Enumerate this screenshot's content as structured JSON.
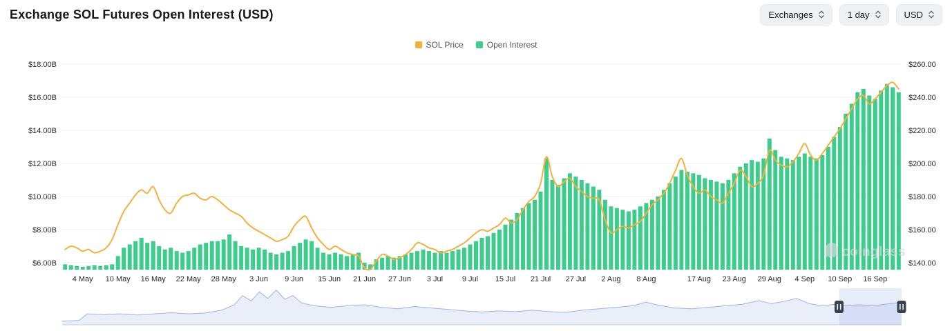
{
  "header": {
    "title": "Exchange SOL Futures Open Interest (USD)",
    "controls": [
      {
        "id": "exchanges",
        "label": "Exchanges"
      },
      {
        "id": "interval",
        "label": "1 day"
      },
      {
        "id": "currency",
        "label": "USD"
      }
    ]
  },
  "legend": [
    {
      "label": "SOL Price",
      "color": "#F3B13C"
    },
    {
      "label": "Open Interest",
      "color": "#3CCD8C"
    }
  ],
  "watermark": "coinglass",
  "colors": {
    "bar_green": "#3CCD8C",
    "line_yellow": "#F3B13C",
    "grid": "#EEEFF1",
    "axis_text": "#26292D",
    "button_bg": "#F0F1F4"
  },
  "chart_data": {
    "type": "bar+line",
    "title": "Exchange SOL Futures Open Interest (USD)",
    "legend_position": "top-center",
    "grid": true,
    "x": [
      "1 May",
      "2 May",
      "3 May",
      "4 May",
      "5 May",
      "6 May",
      "7 May",
      "8 May",
      "9 May",
      "10 May",
      "11 May",
      "12 May",
      "13 May",
      "14 May",
      "15 May",
      "16 May",
      "17 May",
      "18 May",
      "19 May",
      "20 May",
      "21 May",
      "22 May",
      "23 May",
      "24 May",
      "25 May",
      "26 May",
      "27 May",
      "28 May",
      "29 May",
      "30 May",
      "31 May",
      "1 Jun",
      "2 Jun",
      "3 Jun",
      "4 Jun",
      "5 Jun",
      "6 Jun",
      "7 Jun",
      "8 Jun",
      "9 Jun",
      "10 Jun",
      "11 Jun",
      "12 Jun",
      "13 Jun",
      "14 Jun",
      "15 Jun",
      "16 Jun",
      "17 Jun",
      "18 Jun",
      "19 Jun",
      "20 Jun",
      "21 Jun",
      "22 Jun",
      "23 Jun",
      "24 Jun",
      "25 Jun",
      "26 Jun",
      "27 Jun",
      "28 Jun",
      "29 Jun",
      "30 Jun",
      "1 Jul",
      "2 Jul",
      "3 Jul",
      "4 Jul",
      "5 Jul",
      "6 Jul",
      "7 Jul",
      "8 Jul",
      "9 Jul",
      "10 Jul",
      "11 Jul",
      "12 Jul",
      "13 Jul",
      "14 Jul",
      "15 Jul",
      "16 Jul",
      "17 Jul",
      "18 Jul",
      "19 Jul",
      "20 Jul",
      "21 Jul",
      "22 Jul",
      "23 Jul",
      "24 Jul",
      "25 Jul",
      "26 Jul",
      "27 Jul",
      "28 Jul",
      "29 Jul",
      "30 Jul",
      "31 Jul",
      "1 Aug",
      "2 Aug",
      "3 Aug",
      "4 Aug",
      "5 Aug",
      "6 Aug",
      "7 Aug",
      "8 Aug",
      "9 Aug",
      "10 Aug",
      "11 Aug",
      "12 Aug",
      "13 Aug",
      "14 Aug",
      "15 Aug",
      "16 Aug",
      "17 Aug",
      "18 Aug",
      "19 Aug",
      "20 Aug",
      "21 Aug",
      "22 Aug",
      "23 Aug",
      "24 Aug",
      "25 Aug",
      "26 Aug",
      "27 Aug",
      "28 Aug",
      "29 Aug",
      "30 Aug",
      "31 Aug",
      "1 Sep",
      "2 Sep",
      "3 Sep",
      "4 Sep",
      "5 Sep",
      "6 Sep",
      "7 Sep",
      "8 Sep",
      "9 Sep",
      "10 Sep",
      "11 Sep",
      "12 Sep",
      "13 Sep",
      "14 Sep",
      "15 Sep",
      "16 Sep",
      "17 Sep",
      "18 Sep",
      "19 Sep",
      "20 Sep"
    ],
    "series": [
      {
        "name": "Open Interest",
        "type": "bar",
        "axis": "left",
        "unit": "USD billions",
        "color": "#3CCD8C",
        "values": [
          5.9,
          5.85,
          5.8,
          5.75,
          5.8,
          5.85,
          5.8,
          5.85,
          5.9,
          6.4,
          6.9,
          7.1,
          7.3,
          7.5,
          7.2,
          7.3,
          7.0,
          6.8,
          6.9,
          6.7,
          6.6,
          6.7,
          6.9,
          7.1,
          7.2,
          7.3,
          7.3,
          7.4,
          7.7,
          7.3,
          7.0,
          6.9,
          6.8,
          6.9,
          6.8,
          6.6,
          6.5,
          6.6,
          6.7,
          7.0,
          7.2,
          7.4,
          7.3,
          6.9,
          6.6,
          6.5,
          6.6,
          6.5,
          6.4,
          6.5,
          6.6,
          6.0,
          5.9,
          6.2,
          6.3,
          6.4,
          6.3,
          6.4,
          6.5,
          6.6,
          6.7,
          6.8,
          6.7,
          6.6,
          6.7,
          6.6,
          6.7,
          6.8,
          6.9,
          7.1,
          7.3,
          7.5,
          7.6,
          7.8,
          8.0,
          8.3,
          8.6,
          9.0,
          9.3,
          9.6,
          9.8,
          10.3,
          12.3,
          11.0,
          10.7,
          11.1,
          11.4,
          11.2,
          11.0,
          10.8,
          10.6,
          10.4,
          9.8,
          9.4,
          9.3,
          9.2,
          9.1,
          9.2,
          9.4,
          9.6,
          9.8,
          10.0,
          10.4,
          10.8,
          11.2,
          11.6,
          11.5,
          11.4,
          11.3,
          11.1,
          11.0,
          10.9,
          10.8,
          11.0,
          11.4,
          11.8,
          12.0,
          12.2,
          12.1,
          12.3,
          13.5,
          12.8,
          12.4,
          12.3,
          12.2,
          12.4,
          12.6,
          12.4,
          12.3,
          12.5,
          13.0,
          13.6,
          14.2,
          15.0,
          15.6,
          16.3,
          16.5,
          16.1,
          15.9,
          16.4,
          16.8,
          16.6,
          16.3
        ]
      },
      {
        "name": "SOL Price",
        "type": "line",
        "axis": "right",
        "unit": "USD",
        "color": "#F3B13C",
        "values": [
          148,
          150,
          149,
          147,
          148,
          146,
          147,
          149,
          154,
          163,
          171,
          176,
          181,
          184,
          182,
          186,
          178,
          172,
          170,
          176,
          180,
          181,
          182,
          179,
          178,
          180,
          178,
          175,
          172,
          170,
          168,
          164,
          161,
          159,
          157,
          155,
          153,
          154,
          156,
          162,
          166,
          168,
          161,
          155,
          151,
          148,
          150,
          148,
          146,
          145,
          144,
          137,
          136,
          141,
          145,
          144,
          142,
          143,
          145,
          148,
          152,
          151,
          149,
          148,
          146,
          147,
          148,
          150,
          152,
          155,
          158,
          160,
          159,
          161,
          163,
          167,
          164,
          166,
          172,
          177,
          180,
          188,
          204,
          192,
          186,
          189,
          191,
          186,
          183,
          180,
          179,
          178,
          166,
          158,
          160,
          162,
          161,
          163,
          165,
          170,
          175,
          178,
          182,
          188,
          196,
          203,
          193,
          186,
          182,
          184,
          180,
          178,
          176,
          182,
          188,
          196,
          192,
          186,
          188,
          193,
          208,
          202,
          199,
          198,
          201,
          206,
          212,
          205,
          202,
          206,
          211,
          216,
          221,
          227,
          233,
          239,
          241,
          236,
          239,
          243,
          247,
          249,
          245
        ]
      }
    ],
    "left_axis": {
      "title": "Open Interest (USD)",
      "tick_values": [
        6,
        8,
        10,
        12,
        14,
        16,
        18
      ],
      "tick_labels": [
        "$6.00B",
        "$8.00B",
        "$10.00B",
        "$12.00B",
        "$14.00B",
        "$16.00B",
        "$18.00B"
      ],
      "min": 5.58,
      "max": 18.7
    },
    "right_axis": {
      "title": "SOL Price (USD)",
      "tick_values": [
        140,
        160,
        180,
        200,
        220,
        240,
        260
      ],
      "tick_labels": [
        "$140.00",
        "$160.00",
        "$180.00",
        "$200.00",
        "$220.00",
        "$240.00",
        "$260.00"
      ],
      "min": 135,
      "max": 262
    },
    "x_tick_labels": [
      "4 May",
      "10 May",
      "16 May",
      "22 May",
      "28 May",
      "3 Jun",
      "9 Jun",
      "15 Jun",
      "21 Jun",
      "27 Jun",
      "3 Jul",
      "9 Jul",
      "15 Jul",
      "21 Jul",
      "27 Jul",
      "2 Aug",
      "8 Aug",
      "17 Aug",
      "23 Aug",
      "29 Aug",
      "4 Sep",
      "10 Sep",
      "16 Sep"
    ]
  },
  "navigator": {
    "points": [
      [
        0,
        0.1
      ],
      [
        0.02,
        0.12
      ],
      [
        0.03,
        0.3
      ],
      [
        0.05,
        0.28
      ],
      [
        0.07,
        0.3
      ],
      [
        0.09,
        0.27
      ],
      [
        0.11,
        0.3
      ],
      [
        0.13,
        0.33
      ],
      [
        0.15,
        0.3
      ],
      [
        0.17,
        0.32
      ],
      [
        0.19,
        0.4
      ],
      [
        0.205,
        0.55
      ],
      [
        0.215,
        0.8
      ],
      [
        0.225,
        0.65
      ],
      [
        0.235,
        0.9
      ],
      [
        0.245,
        0.72
      ],
      [
        0.255,
        0.95
      ],
      [
        0.265,
        0.7
      ],
      [
        0.275,
        0.8
      ],
      [
        0.285,
        0.6
      ],
      [
        0.3,
        0.52
      ],
      [
        0.32,
        0.48
      ],
      [
        0.34,
        0.52
      ],
      [
        0.36,
        0.55
      ],
      [
        0.38,
        0.48
      ],
      [
        0.4,
        0.44
      ],
      [
        0.42,
        0.5
      ],
      [
        0.44,
        0.46
      ],
      [
        0.46,
        0.42
      ],
      [
        0.48,
        0.38
      ],
      [
        0.5,
        0.35
      ],
      [
        0.52,
        0.38
      ],
      [
        0.54,
        0.36
      ],
      [
        0.56,
        0.4
      ],
      [
        0.58,
        0.36
      ],
      [
        0.6,
        0.34
      ],
      [
        0.62,
        0.4
      ],
      [
        0.64,
        0.44
      ],
      [
        0.66,
        0.48
      ],
      [
        0.68,
        0.52
      ],
      [
        0.695,
        0.62
      ],
      [
        0.71,
        0.54
      ],
      [
        0.73,
        0.46
      ],
      [
        0.75,
        0.44
      ],
      [
        0.77,
        0.48
      ],
      [
        0.79,
        0.52
      ],
      [
        0.81,
        0.56
      ],
      [
        0.83,
        0.66
      ],
      [
        0.845,
        0.58
      ],
      [
        0.86,
        0.64
      ],
      [
        0.875,
        0.72
      ],
      [
        0.89,
        0.58
      ],
      [
        0.905,
        0.52
      ],
      [
        0.92,
        0.56
      ],
      [
        0.935,
        0.52
      ],
      [
        0.95,
        0.55
      ],
      [
        0.965,
        0.52
      ],
      [
        0.98,
        0.56
      ],
      [
        1.0,
        0.62
      ]
    ],
    "selection": [
      0.9255,
      1.0
    ],
    "line_color": "#9FB3E2",
    "fill_color": "#E9EEF9",
    "selection_color": "rgba(121,152,219,0.18)",
    "handle_color": "#3A4150",
    "baseline_color": "#C6CFDF"
  }
}
